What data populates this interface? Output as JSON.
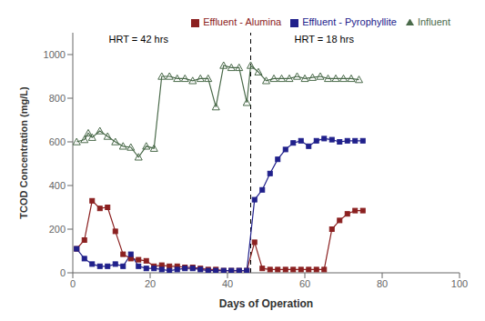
{
  "chart_data": {
    "type": "line",
    "xlabel": "Days of Operation",
    "ylabel": "TCOD Concentration (mg/L)",
    "xlim": [
      0,
      100
    ],
    "ylim": [
      0,
      1100
    ],
    "xticks": [
      0,
      20,
      40,
      60,
      80,
      100
    ],
    "yticks": [
      0,
      200,
      400,
      600,
      800,
      1000
    ],
    "grid": false,
    "legend": "upper right",
    "reference_lines": [
      {
        "x": 46,
        "line_style": "dashed",
        "color": "#000000"
      }
    ],
    "annotations": [
      {
        "text": "HRT = 42 hrs",
        "x": 17,
        "y": 1045
      },
      {
        "text": "HRT = 18 hrs",
        "x": 65,
        "y": 1045
      }
    ],
    "series": [
      {
        "name": "Influent",
        "color": "#4a6a4a",
        "marker": "triangle",
        "x": [
          1,
          3,
          4,
          5,
          7,
          9,
          11,
          13,
          15,
          17,
          19,
          21,
          23,
          25,
          27,
          29,
          31,
          33,
          35,
          37,
          39,
          41,
          43,
          45,
          46,
          48,
          50,
          52,
          54,
          56,
          58,
          60,
          62,
          64,
          66,
          68,
          70,
          72,
          74
        ],
        "values": [
          600,
          610,
          640,
          620,
          650,
          625,
          600,
          580,
          575,
          530,
          580,
          570,
          900,
          900,
          890,
          890,
          880,
          890,
          890,
          760,
          950,
          940,
          940,
          780,
          950,
          920,
          880,
          890,
          890,
          890,
          900,
          890,
          895,
          900,
          890,
          890,
          890,
          890,
          885
        ]
      },
      {
        "name": "Effluent - Alumina",
        "color": "#8b2020",
        "marker": "square",
        "x": [
          1,
          3,
          5,
          7,
          9,
          11,
          13,
          15,
          17,
          19,
          21,
          23,
          25,
          27,
          29,
          31,
          33,
          35,
          37,
          39,
          41,
          43,
          45,
          47,
          49,
          51,
          53,
          55,
          57,
          59,
          61,
          63,
          65,
          67,
          69,
          71,
          73,
          75
        ],
        "values": [
          110,
          150,
          330,
          295,
          300,
          190,
          85,
          65,
          60,
          55,
          30,
          35,
          30,
          30,
          25,
          25,
          20,
          15,
          15,
          10,
          10,
          10,
          10,
          140,
          20,
          15,
          15,
          15,
          15,
          15,
          15,
          15,
          15,
          200,
          240,
          270,
          285,
          285
        ]
      },
      {
        "name": "Effluent - Pyrophyllite",
        "color": "#20208b",
        "marker": "square",
        "x": [
          1,
          3,
          5,
          7,
          9,
          11,
          13,
          15,
          17,
          19,
          21,
          23,
          25,
          27,
          29,
          31,
          33,
          35,
          37,
          39,
          41,
          43,
          45,
          47,
          49,
          51,
          53,
          55,
          57,
          59,
          61,
          63,
          65,
          67,
          69,
          71,
          73,
          75
        ],
        "values": [
          110,
          65,
          40,
          30,
          30,
          40,
          30,
          85,
          30,
          20,
          20,
          15,
          10,
          15,
          20,
          20,
          15,
          10,
          10,
          10,
          10,
          10,
          10,
          335,
          380,
          455,
          520,
          565,
          595,
          605,
          580,
          605,
          615,
          610,
          600,
          605,
          605,
          605
        ]
      }
    ]
  }
}
